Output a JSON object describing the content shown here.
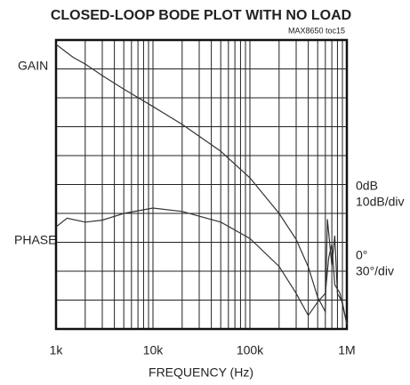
{
  "chart_data": {
    "type": "line",
    "title": "CLOSED-LOOP BODE PLOT WITH NO LOAD",
    "subtitle": "MAX8650 toc15",
    "x_label": "FREQUENCY (Hz)",
    "log_x": true,
    "xlim": [
      1000,
      1000000
    ],
    "xticks": [
      {
        "value": 1000,
        "label": "1k"
      },
      {
        "value": 10000,
        "label": "10k"
      },
      {
        "value": 100000,
        "label": "100k"
      },
      {
        "value": 1000000,
        "label": "1M"
      }
    ],
    "xgrid_minor": [
      2000,
      3000,
      4000,
      5000,
      6000,
      7000,
      8000,
      9000,
      20000,
      30000,
      40000,
      50000,
      60000,
      70000,
      80000,
      90000,
      200000,
      300000,
      400000,
      500000,
      600000,
      700000,
      800000,
      900000
    ],
    "ylim": [
      -50,
      50
    ],
    "ygrid": [
      -50,
      -40,
      -30,
      -20,
      -10,
      0,
      10,
      20,
      30,
      40,
      50
    ],
    "y2lim": [
      -90,
      210
    ],
    "annotations": [
      "GAIN",
      "PHASE",
      "0dB",
      "10dB/div",
      "0°",
      "30°/div"
    ],
    "grid": true,
    "series": [
      {
        "name": "GAIN",
        "color": "#333333",
        "x": [
          1000,
          1500,
          2000,
          3000,
          5000,
          10000,
          20000,
          50000,
          100000,
          200000,
          300000,
          400000,
          500000,
          600000,
          630000,
          700000,
          750000,
          800000,
          900000,
          1000000
        ],
        "values": [
          48.5,
          44,
          41.7,
          37.7,
          33,
          27,
          20.8,
          11.5,
          2.3,
          -10,
          -19,
          -28.5,
          -39,
          -44,
          -12,
          -28,
          -17.7,
          -37.7,
          -40.8,
          -48.5
        ]
      },
      {
        "name": "PHASE",
        "color": "#333333",
        "axis": "y2",
        "x": [
          1000,
          1300,
          2000,
          3000,
          5000,
          10000,
          20000,
          50000,
          100000,
          200000,
          300000,
          400000,
          500000,
          600000,
          650000,
          700000,
          750000,
          850000,
          1000000
        ],
        "values": [
          16,
          25,
          21,
          23,
          30,
          35.5,
          32,
          21,
          4,
          -25,
          -53,
          -76,
          -62,
          -53,
          -16,
          -2,
          -44,
          -53,
          -85
        ]
      }
    ]
  }
}
